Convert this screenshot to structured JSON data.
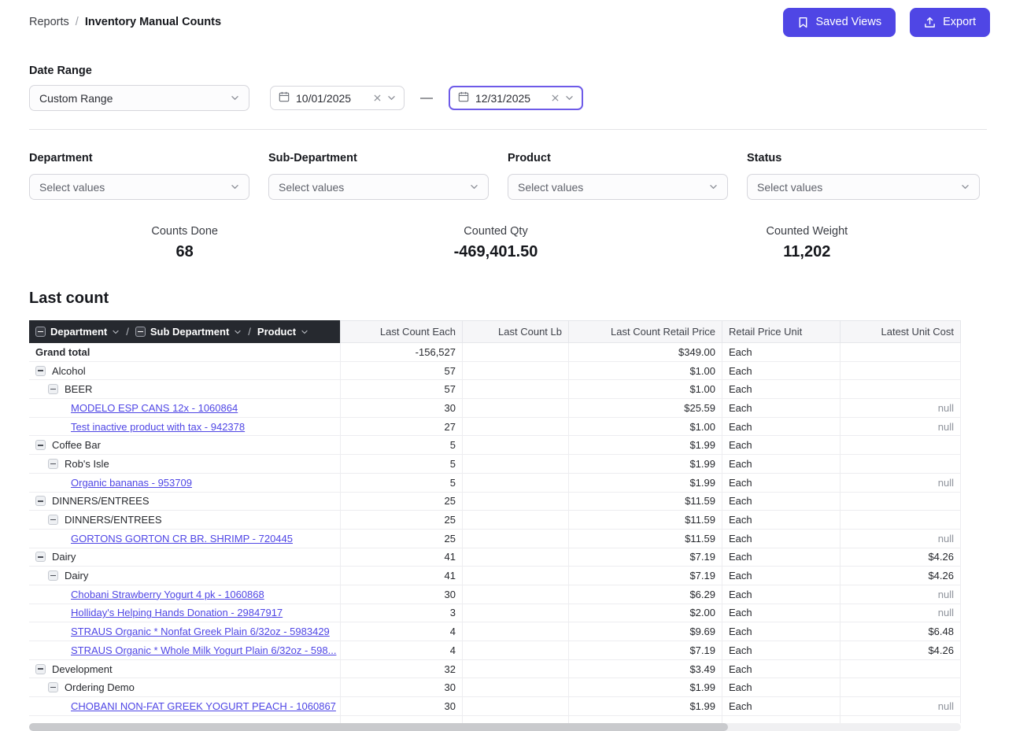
{
  "breadcrumb": {
    "parent": "Reports",
    "separator": "/",
    "current": "Inventory Manual Counts"
  },
  "header_buttons": {
    "saved_views": "Saved Views",
    "export": "Export"
  },
  "colors": {
    "accent": "#4f46e5",
    "focus_border": "#6e5be8",
    "table_header_bg": "#26292f",
    "link": "#4f46e5"
  },
  "filters": {
    "date_range": {
      "label": "Date Range",
      "range_type": "Custom Range",
      "start_date": "10/01/2025",
      "end_date": "12/31/2025",
      "separator": "—"
    },
    "selects": [
      {
        "label": "Department",
        "placeholder": "Select values"
      },
      {
        "label": "Sub-Department",
        "placeholder": "Select values"
      },
      {
        "label": "Product",
        "placeholder": "Select values"
      },
      {
        "label": "Status",
        "placeholder": "Select values"
      }
    ]
  },
  "kpis": [
    {
      "label": "Counts Done",
      "value": "68"
    },
    {
      "label": "Counted Qty",
      "value": "-469,401.50"
    },
    {
      "label": "Counted Weight",
      "value": "11,202"
    }
  ],
  "table": {
    "title": "Last count",
    "group_header": {
      "department": "Department",
      "sub_department": "Sub Department",
      "product": "Product",
      "separator": "/"
    },
    "columns": [
      "Last Count Each",
      "Last Count Lb",
      "Last Count Retail Price",
      "Retail Price Unit",
      "Latest Unit Cost"
    ],
    "rows": [
      {
        "level": 0,
        "total": true,
        "collapsible": false,
        "link": false,
        "name": "Grand total",
        "each": "-156,527",
        "lb": "",
        "retail": "$349.00",
        "unit": "Each",
        "cost": ""
      },
      {
        "level": 1,
        "total": false,
        "collapsible": true,
        "link": false,
        "name": "Alcohol",
        "each": "57",
        "lb": "",
        "retail": "$1.00",
        "unit": "Each",
        "cost": ""
      },
      {
        "level": 2,
        "total": false,
        "collapsible": true,
        "link": false,
        "name": "BEER",
        "each": "57",
        "lb": "",
        "retail": "$1.00",
        "unit": "Each",
        "cost": ""
      },
      {
        "level": 3,
        "total": false,
        "collapsible": false,
        "link": true,
        "name": "MODELO ESP  CANS 12x - 1060864",
        "each": "30",
        "lb": "",
        "retail": "$25.59",
        "unit": "Each",
        "cost": "null"
      },
      {
        "level": 3,
        "total": false,
        "collapsible": false,
        "link": true,
        "name": "Test inactive product with tax - 942378",
        "each": "27",
        "lb": "",
        "retail": "$1.00",
        "unit": "Each",
        "cost": "null"
      },
      {
        "level": 1,
        "total": false,
        "collapsible": true,
        "link": false,
        "name": "Coffee Bar",
        "each": "5",
        "lb": "",
        "retail": "$1.99",
        "unit": "Each",
        "cost": ""
      },
      {
        "level": 2,
        "total": false,
        "collapsible": true,
        "link": false,
        "name": "Rob's Isle",
        "each": "5",
        "lb": "",
        "retail": "$1.99",
        "unit": "Each",
        "cost": ""
      },
      {
        "level": 3,
        "total": false,
        "collapsible": false,
        "link": true,
        "name": "Organic bananas - 953709",
        "each": "5",
        "lb": "",
        "retail": "$1.99",
        "unit": "Each",
        "cost": "null"
      },
      {
        "level": 1,
        "total": false,
        "collapsible": true,
        "link": false,
        "name": "DINNERS/ENTREES",
        "each": "25",
        "lb": "",
        "retail": "$11.59",
        "unit": "Each",
        "cost": ""
      },
      {
        "level": 2,
        "total": false,
        "collapsible": true,
        "link": false,
        "name": "DINNERS/ENTREES",
        "each": "25",
        "lb": "",
        "retail": "$11.59",
        "unit": "Each",
        "cost": ""
      },
      {
        "level": 3,
        "total": false,
        "collapsible": false,
        "link": true,
        "name": "GORTONS GORTON CR BR. SHRIMP  - 720445",
        "each": "25",
        "lb": "",
        "retail": "$11.59",
        "unit": "Each",
        "cost": "null"
      },
      {
        "level": 1,
        "total": false,
        "collapsible": true,
        "link": false,
        "name": "Dairy",
        "each": "41",
        "lb": "",
        "retail": "$7.19",
        "unit": "Each",
        "cost": "$4.26"
      },
      {
        "level": 2,
        "total": false,
        "collapsible": true,
        "link": false,
        "name": "Dairy",
        "each": "41",
        "lb": "",
        "retail": "$7.19",
        "unit": "Each",
        "cost": "$4.26"
      },
      {
        "level": 3,
        "total": false,
        "collapsible": false,
        "link": true,
        "name": "Chobani Strawberry Yogurt 4 pk - 1060868",
        "each": "30",
        "lb": "",
        "retail": "$6.29",
        "unit": "Each",
        "cost": "null"
      },
      {
        "level": 3,
        "total": false,
        "collapsible": false,
        "link": true,
        "name": "Holliday's Helping Hands Donation - 29847917",
        "each": "3",
        "lb": "",
        "retail": "$2.00",
        "unit": "Each",
        "cost": "null"
      },
      {
        "level": 3,
        "total": false,
        "collapsible": false,
        "link": true,
        "name": "STRAUS Organic * Nonfat Greek Plain 6/32oz - 5983429",
        "each": "4",
        "lb": "",
        "retail": "$9.69",
        "unit": "Each",
        "cost": "$6.48"
      },
      {
        "level": 3,
        "total": false,
        "collapsible": false,
        "link": true,
        "name": "STRAUS Organic * Whole Milk Yogurt Plain 6/32oz - 598...",
        "each": "4",
        "lb": "",
        "retail": "$7.19",
        "unit": "Each",
        "cost": "$4.26"
      },
      {
        "level": 1,
        "total": false,
        "collapsible": true,
        "link": false,
        "name": "Development",
        "each": "32",
        "lb": "",
        "retail": "$3.49",
        "unit": "Each",
        "cost": ""
      },
      {
        "level": 2,
        "total": false,
        "collapsible": true,
        "link": false,
        "name": "Ordering Demo",
        "each": "30",
        "lb": "",
        "retail": "$1.99",
        "unit": "Each",
        "cost": ""
      },
      {
        "level": 3,
        "total": false,
        "collapsible": false,
        "link": true,
        "name": "CHOBANI NON-FAT GREEK YOGURT PEACH - 1060867",
        "each": "30",
        "lb": "",
        "retail": "$1.99",
        "unit": "Each",
        "cost": "null"
      }
    ]
  }
}
